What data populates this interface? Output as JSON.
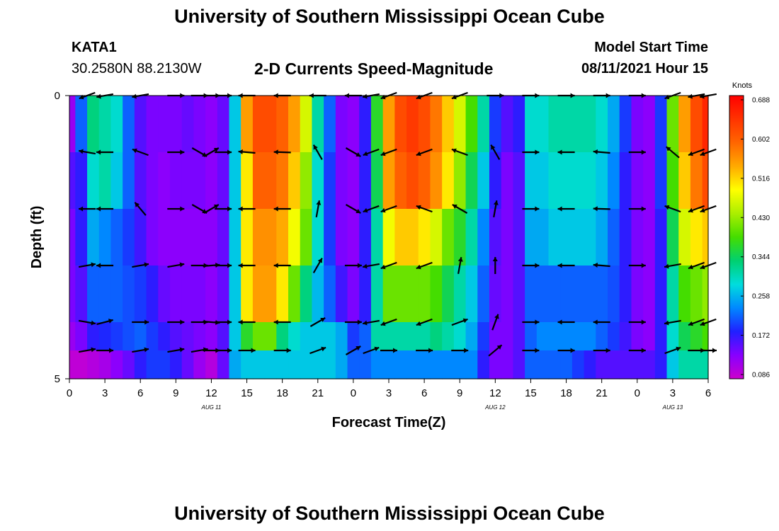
{
  "header": {
    "title": "University of Southern Mississippi Ocean Cube",
    "station": "KATA1",
    "coords": "30.2580N  88.2130W",
    "subtitle": "2-D Currents Speed-Magnitude",
    "model_start_label": "Model Start Time",
    "model_start_value": "08/11/2021 Hour 15"
  },
  "footer": {
    "title": "University of Southern Mississippi Ocean Cube"
  },
  "chart_data": {
    "type": "heatmap",
    "xlabel": "Forecast Time(Z)",
    "ylabel": "Depth (ft)",
    "units": "Knots",
    "x_range": [
      0,
      54
    ],
    "y_range": [
      0,
      5
    ],
    "x_ticks": [
      0,
      3,
      6,
      9,
      12,
      15,
      18,
      21,
      24,
      27,
      30,
      33,
      36,
      39,
      42,
      45,
      48,
      51,
      54
    ],
    "x_tick_labels": [
      "0",
      "3",
      "6",
      "9",
      "12",
      "15",
      "18",
      "21",
      "0",
      "3",
      "6",
      "9",
      "12",
      "15",
      "18",
      "21",
      "0",
      "3",
      "6"
    ],
    "y_tick_labels": [
      "0",
      "5"
    ],
    "date_labels": [
      {
        "hour": 12,
        "text": "AUG 11"
      },
      {
        "hour": 36,
        "text": "AUG 12"
      },
      {
        "hour": 51,
        "text": "AUG 13"
      }
    ],
    "colorbar_ticks": [
      "0.688",
      "0.602",
      "0.516",
      "0.430",
      "0.344",
      "0.258",
      "0.172",
      "0.086"
    ],
    "colorbar_range": [
      0.06,
      0.7
    ],
    "colors": {
      "scale": [
        "#cc00cc",
        "#8800ff",
        "#2020ff",
        "#0088ff",
        "#00dddd",
        "#00d070",
        "#44dd00",
        "#aaee00",
        "#ffff00",
        "#ffaa00",
        "#ff6600",
        "#ff3300",
        "#ff0000"
      ]
    },
    "depth_rows": [
      0,
      1,
      2,
      3,
      4,
      4.5
    ],
    "hours": [
      0,
      1,
      2,
      3,
      4,
      5,
      6,
      7,
      8,
      9,
      10,
      11,
      12,
      13,
      14,
      15,
      16,
      17,
      18,
      19,
      20,
      21,
      22,
      23,
      24,
      25,
      26,
      27,
      28,
      29,
      30,
      31,
      32,
      33,
      34,
      35,
      36,
      37,
      38,
      39,
      40,
      41,
      42,
      43,
      44,
      45,
      46,
      47,
      48,
      49,
      50,
      51,
      52,
      53,
      54
    ],
    "speed": [
      [
        0.1,
        0.2,
        0.32,
        0.3,
        0.28,
        0.2,
        0.14,
        0.12,
        0.12,
        0.12,
        0.13,
        0.12,
        0.11,
        0.13,
        0.26,
        0.55,
        0.62,
        0.62,
        0.6,
        0.55,
        0.46,
        0.3,
        0.2,
        0.12,
        0.11,
        0.16,
        0.36,
        0.55,
        0.62,
        0.64,
        0.62,
        0.58,
        0.52,
        0.46,
        0.38,
        0.3,
        0.18,
        0.14,
        0.16,
        0.28,
        0.28,
        0.3,
        0.3,
        0.3,
        0.3,
        0.28,
        0.24,
        0.18,
        0.12,
        0.11,
        0.18,
        0.4,
        0.55,
        0.62,
        0.66
      ],
      [
        0.14,
        0.16,
        0.28,
        0.3,
        0.26,
        0.2,
        0.14,
        0.12,
        0.11,
        0.12,
        0.12,
        0.12,
        0.11,
        0.13,
        0.26,
        0.5,
        0.6,
        0.6,
        0.58,
        0.52,
        0.42,
        0.28,
        0.18,
        0.12,
        0.11,
        0.16,
        0.34,
        0.55,
        0.6,
        0.62,
        0.6,
        0.56,
        0.5,
        0.42,
        0.34,
        0.26,
        0.16,
        0.12,
        0.14,
        0.26,
        0.26,
        0.28,
        0.28,
        0.28,
        0.28,
        0.26,
        0.22,
        0.16,
        0.12,
        0.11,
        0.18,
        0.38,
        0.52,
        0.58,
        0.62
      ],
      [
        0.12,
        0.16,
        0.24,
        0.22,
        0.2,
        0.18,
        0.15,
        0.12,
        0.11,
        0.11,
        0.11,
        0.11,
        0.11,
        0.13,
        0.26,
        0.5,
        0.56,
        0.56,
        0.54,
        0.48,
        0.4,
        0.28,
        0.18,
        0.12,
        0.11,
        0.16,
        0.3,
        0.48,
        0.52,
        0.52,
        0.5,
        0.46,
        0.4,
        0.36,
        0.3,
        0.22,
        0.14,
        0.12,
        0.14,
        0.24,
        0.24,
        0.26,
        0.26,
        0.26,
        0.26,
        0.24,
        0.2,
        0.16,
        0.12,
        0.11,
        0.16,
        0.34,
        0.46,
        0.5,
        0.52
      ],
      [
        0.12,
        0.14,
        0.2,
        0.2,
        0.2,
        0.19,
        0.18,
        0.16,
        0.13,
        0.12,
        0.12,
        0.12,
        0.11,
        0.13,
        0.26,
        0.5,
        0.55,
        0.55,
        0.5,
        0.4,
        0.32,
        0.25,
        0.2,
        0.15,
        0.12,
        0.16,
        0.3,
        0.4,
        0.4,
        0.4,
        0.4,
        0.38,
        0.34,
        0.3,
        0.26,
        0.2,
        0.13,
        0.12,
        0.14,
        0.2,
        0.2,
        0.2,
        0.2,
        0.2,
        0.2,
        0.2,
        0.19,
        0.16,
        0.12,
        0.11,
        0.16,
        0.3,
        0.38,
        0.4,
        0.42
      ],
      [
        0.1,
        0.12,
        0.16,
        0.17,
        0.18,
        0.19,
        0.2,
        0.18,
        0.16,
        0.14,
        0.13,
        0.12,
        0.11,
        0.14,
        0.26,
        0.36,
        0.4,
        0.4,
        0.32,
        0.28,
        0.26,
        0.26,
        0.26,
        0.24,
        0.18,
        0.2,
        0.3,
        0.3,
        0.3,
        0.3,
        0.3,
        0.32,
        0.3,
        0.28,
        0.24,
        0.18,
        0.12,
        0.12,
        0.14,
        0.2,
        0.22,
        0.22,
        0.22,
        0.22,
        0.22,
        0.2,
        0.18,
        0.15,
        0.12,
        0.11,
        0.16,
        0.28,
        0.34,
        0.36,
        0.38
      ],
      [
        0.07,
        0.07,
        0.08,
        0.09,
        0.11,
        0.13,
        0.16,
        0.18,
        0.18,
        0.16,
        0.13,
        0.1,
        0.08,
        0.13,
        0.24,
        0.26,
        0.26,
        0.26,
        0.26,
        0.26,
        0.26,
        0.26,
        0.26,
        0.24,
        0.2,
        0.2,
        0.22,
        0.22,
        0.22,
        0.22,
        0.22,
        0.22,
        0.22,
        0.22,
        0.22,
        0.16,
        0.12,
        0.12,
        0.14,
        0.2,
        0.2,
        0.2,
        0.2,
        0.18,
        0.16,
        0.14,
        0.14,
        0.14,
        0.14,
        0.14,
        0.16,
        0.26,
        0.3,
        0.3,
        0.3
      ]
    ],
    "vector_hours": [
      1.5,
      3,
      6,
      9,
      11,
      12,
      13,
      15,
      18,
      21,
      24,
      25.5,
      27,
      30,
      33,
      36,
      39,
      42,
      45,
      48,
      51,
      53,
      54
    ],
    "vector_angles": [
      [
        200,
        190,
        190,
        0,
        0,
        0,
        0,
        180,
        180,
        180,
        180,
        190,
        200,
        200,
        200,
        0,
        0,
        0,
        0,
        0,
        200,
        190,
        190
      ],
      [
        170,
        180,
        160,
        0,
        330,
        30,
        0,
        175,
        178,
        120,
        330,
        200,
        200,
        200,
        160,
        120,
        0,
        180,
        175,
        0,
        140,
        200,
        200
      ],
      [
        180,
        180,
        130,
        0,
        330,
        30,
        0,
        180,
        180,
        80,
        330,
        200,
        200,
        160,
        150,
        80,
        0,
        180,
        178,
        0,
        160,
        200,
        200
      ],
      [
        10,
        180,
        10,
        10,
        0,
        5,
        0,
        180,
        180,
        60,
        0,
        190,
        200,
        200,
        80,
        90,
        0,
        180,
        175,
        0,
        190,
        200,
        200
      ],
      [
        350,
        15,
        0,
        0,
        0,
        355,
        0,
        180,
        180,
        30,
        0,
        190,
        200,
        200,
        20,
        70,
        0,
        180,
        180,
        0,
        190,
        200,
        200
      ],
      [
        10,
        0,
        10,
        10,
        10,
        0,
        0,
        0,
        0,
        20,
        30,
        20,
        0,
        0,
        0,
        40,
        0,
        0,
        0,
        0,
        20,
        0,
        0
      ]
    ]
  }
}
